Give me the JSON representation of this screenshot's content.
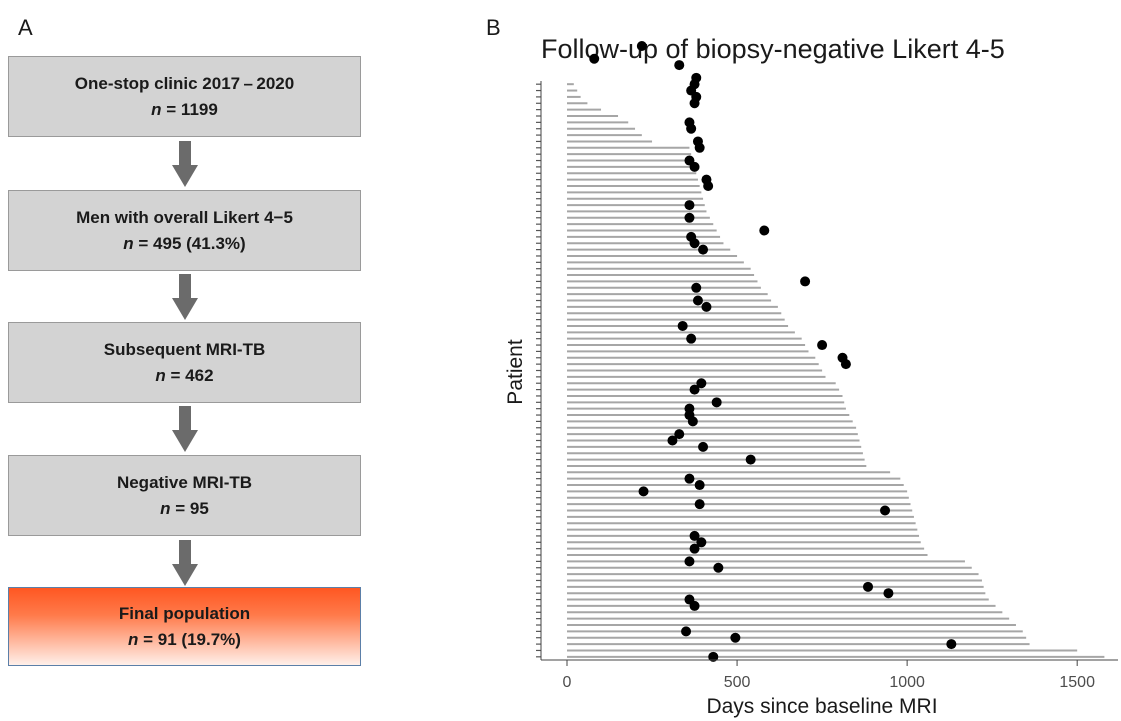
{
  "panel_a": {
    "label": "A",
    "boxes": [
      {
        "title": "One-stop clinic 2017 – 2020",
        "n_prefix": "n",
        "n_value": " = 1199"
      },
      {
        "title": "Men with overall Likert 4−5",
        "n_prefix": "n",
        "n_value": " = 495 (41.3%)"
      },
      {
        "title": "Subsequent MRI-TB",
        "n_prefix": "n",
        "n_value": " = 462"
      },
      {
        "title": "Negative MRI-TB",
        "n_prefix": "n",
        "n_value": " = 95"
      },
      {
        "title": "Final population",
        "n_prefix": "n",
        "n_value": " = 91 (19.7%)"
      }
    ],
    "colors": {
      "box": "#d3d3d3",
      "arrow": "#6b6b6b",
      "final_top": "#ff5722"
    }
  },
  "panel_b": {
    "label": "B"
  },
  "chart_data": {
    "type": "bar",
    "orientation": "horizontal",
    "title": "Follow-up of biopsy-negative Likert 4-5",
    "xlabel": "Days since baseline MRI",
    "ylabel": "Patient",
    "xlim": [
      -100,
      1620
    ],
    "xticks": [
      0,
      500,
      1000,
      1500
    ],
    "grid": false,
    "bar_color": "#a6a6a6",
    "point_color": "#000000",
    "series": [
      {
        "values": [
          1580,
          1500,
          1360,
          1350,
          1340,
          1320,
          1300,
          1280,
          1260,
          1240,
          1230,
          1225,
          1220,
          1210,
          1190,
          1170,
          1060,
          1050,
          1040,
          1035,
          1030,
          1025,
          1020,
          1015,
          1010,
          1005,
          1000,
          990,
          980,
          950,
          880,
          875,
          870,
          865,
          860,
          855,
          850,
          840,
          830,
          820,
          815,
          810,
          800,
          790,
          760,
          750,
          740,
          730,
          710,
          700,
          690,
          670,
          650,
          640,
          630,
          620,
          600,
          590,
          570,
          560,
          550,
          540,
          520,
          500,
          480,
          460,
          450,
          440,
          430,
          420,
          410,
          405,
          400,
          395,
          390,
          385,
          380,
          375,
          370,
          365,
          360,
          250,
          220,
          200,
          180,
          150,
          100,
          60,
          40,
          30,
          20
        ]
      },
      {
        "points": [
          [
            430,
            1
          ],
          [
            1130,
            3
          ],
          [
            495,
            4
          ],
          [
            350,
            5
          ],
          [
            375,
            9
          ],
          [
            360,
            10
          ],
          [
            945,
            11
          ],
          [
            885,
            12
          ],
          [
            445,
            15
          ],
          [
            360,
            16
          ],
          [
            375,
            18
          ],
          [
            395,
            19
          ],
          [
            375,
            20
          ],
          [
            935,
            24
          ],
          [
            390,
            25
          ],
          [
            225,
            27
          ],
          [
            390,
            28
          ],
          [
            360,
            29
          ],
          [
            540,
            32
          ],
          [
            400,
            34
          ],
          [
            310,
            35
          ],
          [
            330,
            36
          ],
          [
            370,
            38
          ],
          [
            360,
            39
          ],
          [
            360,
            40
          ],
          [
            440,
            41
          ],
          [
            375,
            43
          ],
          [
            395,
            44
          ],
          [
            820,
            47
          ],
          [
            810,
            48
          ],
          [
            750,
            50
          ],
          [
            365,
            51
          ],
          [
            340,
            53
          ],
          [
            410,
            56
          ],
          [
            385,
            57
          ],
          [
            380,
            59
          ],
          [
            700,
            60
          ],
          [
            400,
            65
          ],
          [
            375,
            66
          ],
          [
            365,
            67
          ],
          [
            580,
            68
          ],
          [
            360,
            70
          ],
          [
            360,
            72
          ],
          [
            415,
            75
          ],
          [
            410,
            76
          ],
          [
            375,
            78
          ],
          [
            360,
            79
          ],
          [
            390,
            81
          ],
          [
            385,
            82
          ],
          [
            365,
            84
          ],
          [
            360,
            85
          ],
          [
            375,
            88
          ],
          [
            380,
            89
          ],
          [
            365,
            90
          ],
          [
            375,
            91
          ],
          [
            380,
            92
          ],
          [
            330,
            94
          ],
          [
            80,
            95
          ],
          [
            220,
            97
          ]
        ]
      }
    ]
  }
}
